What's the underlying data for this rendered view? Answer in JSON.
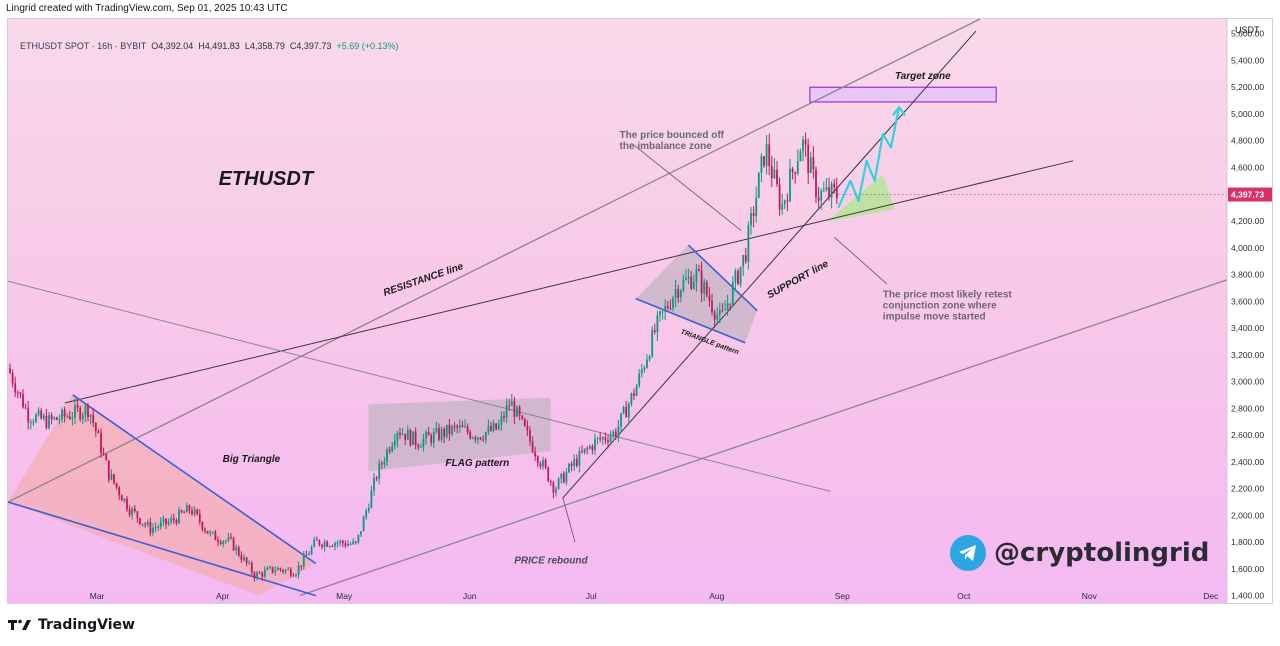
{
  "header": {
    "created_by": "Lingrid created with TradingView.com, Sep 01, 2025 10:43 UTC"
  },
  "legend": {
    "symbol": "ETHUSDT SPOT · 16h · BYBIT",
    "open": "O4,392.04",
    "high": "H4,491.83",
    "low": "L4,358.79",
    "close": "C4,397.73",
    "change": "+5.69 (+0.13%)"
  },
  "price_axis": {
    "currency": "USDT",
    "last_price": "4,397.73"
  },
  "watermark": {
    "handle": "@cryptolingrid"
  },
  "footer": {
    "brand": "TradingView"
  },
  "colors": {
    "background_top": "#f9d9ea",
    "background_bottom": "#f4b9f2",
    "bull": "#089981",
    "bear": "#c2185b",
    "pattern_line": "#3a5fd9",
    "target_zone": "#9b30d9",
    "projection_arrow": "#31d1e0",
    "conjunction_zone": "#b9e39a",
    "last_price_tag": "#d8306b"
  },
  "chart_data": {
    "type": "line",
    "title": "ETHUSDT",
    "xlabel": "",
    "ylabel": "",
    "x_ticks": [
      "Mar",
      "Apr",
      "May",
      "Jun",
      "Jul",
      "Aug",
      "Sep",
      "Oct",
      "Nov",
      "Dec"
    ],
    "y_ticks": [
      "5,600.00",
      "5,400.00",
      "5,200.00",
      "5,000.00",
      "4,800.00",
      "4,600.00",
      "4,400.00",
      "4,200.00",
      "4,000.00",
      "3,800.00",
      "3,600.00",
      "3,400.00",
      "3,200.00",
      "3,000.00",
      "2,800.00",
      "2,600.00",
      "2,400.00",
      "2,200.00",
      "2,000.00",
      "1,800.00",
      "1,600.00",
      "1,400.00"
    ],
    "ylim": [
      1330,
      5710
    ],
    "grid": false,
    "series": [
      {
        "values_x": [
          "2025-02-07",
          "2025-02-12",
          "2025-02-17",
          "2025-02-22",
          "2025-02-27",
          "2025-03-04",
          "2025-03-09",
          "2025-03-14",
          "2025-03-19",
          "2025-03-24",
          "2025-03-29",
          "2025-04-03",
          "2025-04-09",
          "2025-04-14",
          "2025-04-19",
          "2025-04-24",
          "2025-04-29",
          "2025-05-04",
          "2025-05-09",
          "2025-05-14",
          "2025-05-19",
          "2025-05-24",
          "2025-05-29",
          "2025-06-03",
          "2025-06-08",
          "2025-06-11",
          "2025-06-16",
          "2025-06-22",
          "2025-06-27",
          "2025-07-02",
          "2025-07-07",
          "2025-07-12",
          "2025-07-17",
          "2025-07-22",
          "2025-07-27",
          "2025-08-02",
          "2025-08-08",
          "2025-08-13",
          "2025-08-17",
          "2025-08-22",
          "2025-08-26",
          "2025-08-31"
        ],
        "values": [
          3100,
          2750,
          2700,
          2750,
          2800,
          2300,
          2050,
          1900,
          1950,
          2050,
          1850,
          1800,
          1550,
          1600,
          1580,
          1800,
          1800,
          1780,
          2300,
          2650,
          2550,
          2600,
          2650,
          2600,
          2650,
          2850,
          2550,
          2200,
          2400,
          2550,
          2620,
          2950,
          3400,
          3700,
          3800,
          3450,
          3950,
          4750,
          4300,
          4800,
          4400,
          4398
        ]
      }
    ],
    "annotations": {
      "big_triangle": "Big Triangle",
      "flag": "FLAG pattern",
      "triangle": "TRIANGLE pattern",
      "resistance": "RESISTANCE line",
      "support": "SUPPORT line",
      "target": "Target zone",
      "rebound": "PRICE rebound",
      "imbalance": [
        "The price bounced off",
        "the imbalance zone"
      ],
      "retest": [
        "The price most likely retest",
        "conjunction zone where",
        "impulse move started"
      ]
    }
  }
}
